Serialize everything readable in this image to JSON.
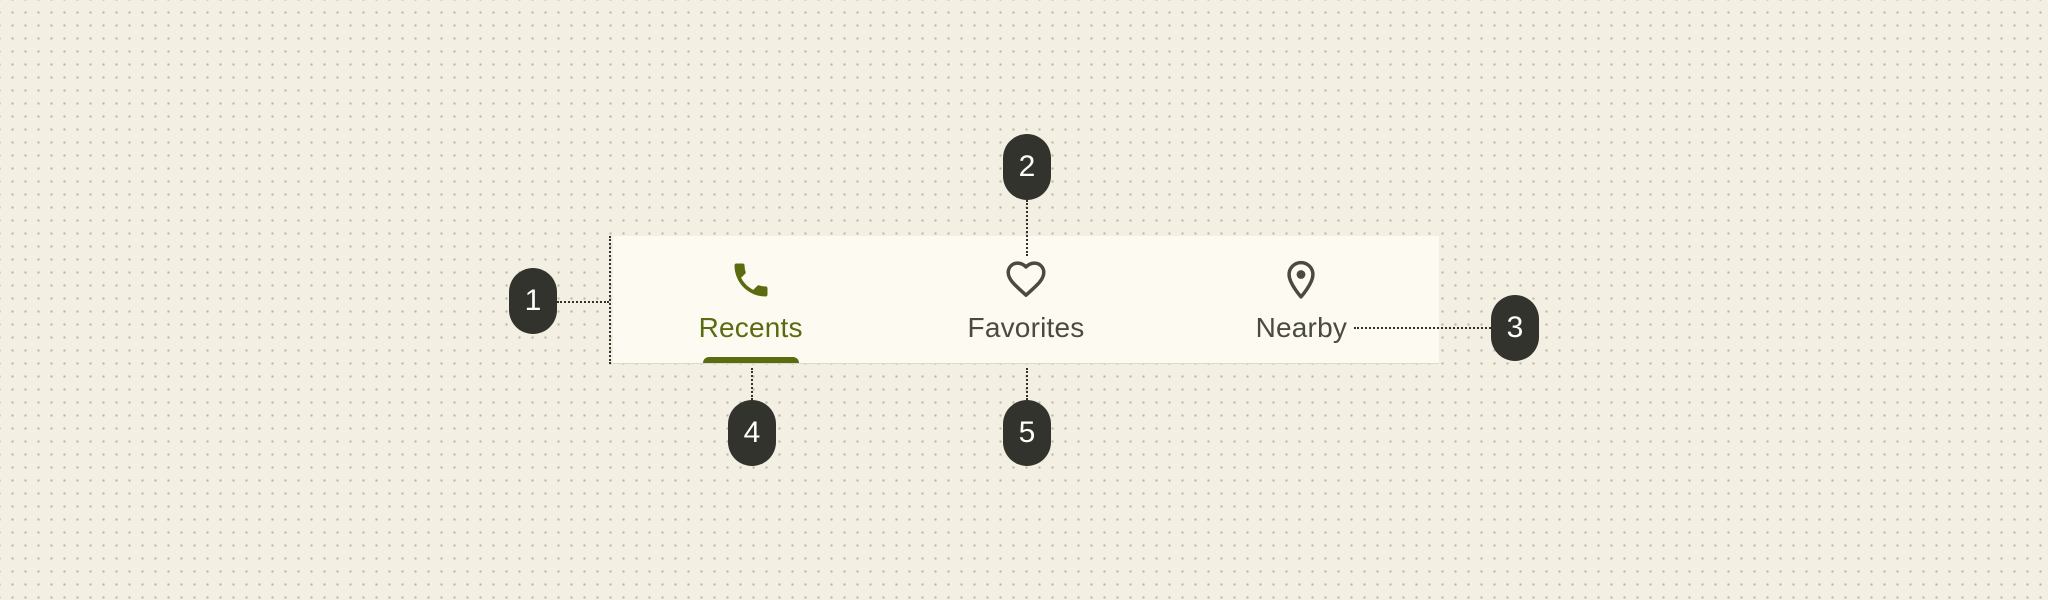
{
  "tabs": [
    {
      "label": "Recents",
      "icon": "phone-icon",
      "active": true
    },
    {
      "label": "Favorites",
      "icon": "heart-icon",
      "active": false
    },
    {
      "label": "Nearby",
      "icon": "location-pin-icon",
      "active": false
    }
  ],
  "callouts": [
    "1",
    "2",
    "3",
    "4",
    "5"
  ],
  "colors": {
    "background": "#f3efe3",
    "surface": "#fdfbf1",
    "active": "#5b6b10",
    "inactive": "#4a4a40",
    "callout": "#33332e"
  }
}
